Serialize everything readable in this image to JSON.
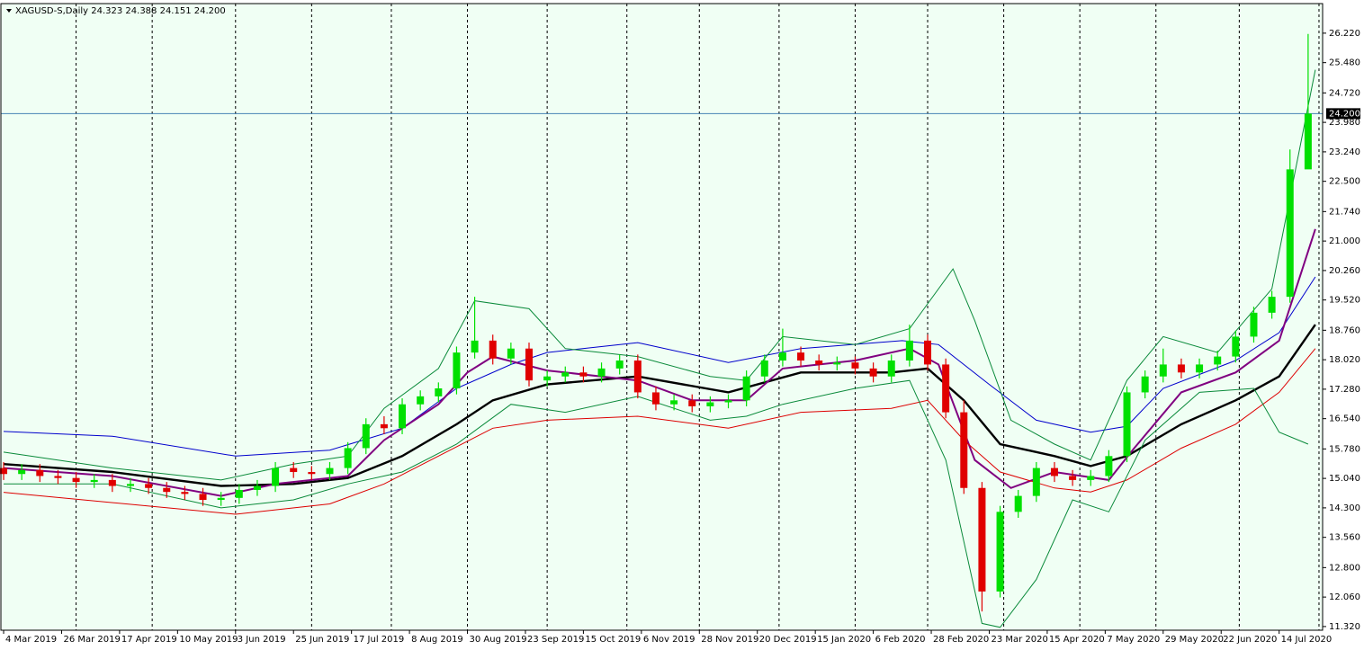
{
  "chart_data": {
    "type": "candlestick",
    "title": "XAGUSD-S,Daily  24.323 24.388 24.151 24.200",
    "background": "#f0fff4",
    "up_color": "#00e000",
    "down_color": "#e00000",
    "xlim": [
      -1,
      364
    ],
    "ylim": [
      11.25,
      26.94
    ],
    "xticks": [
      {
        "value": 0,
        "label": "4 Mar 2019"
      },
      {
        "value": 16,
        "label": "26 Mar 2019"
      },
      {
        "value": 32,
        "label": "17 Apr 2019"
      },
      {
        "value": 48,
        "label": "10 May 2019"
      },
      {
        "value": 64,
        "label": "3 Jun 2019"
      },
      {
        "value": 80,
        "label": "25 Jun 2019"
      },
      {
        "value": 96,
        "label": "17 Jul 2019"
      },
      {
        "value": 112,
        "label": "8 Aug 2019"
      },
      {
        "value": 128,
        "label": "30 Aug 2019"
      },
      {
        "value": 144,
        "label": "23 Sep 2019"
      },
      {
        "value": 160,
        "label": "15 Oct 2019"
      },
      {
        "value": 176,
        "label": "6 Nov 2019"
      },
      {
        "value": 192,
        "label": "28 Nov 2019"
      },
      {
        "value": 208,
        "label": "20 Dec 2019"
      },
      {
        "value": 224,
        "label": "15 Jan 2020"
      },
      {
        "value": 240,
        "label": "6 Feb 2020"
      },
      {
        "value": 256,
        "label": "28 Feb 2020"
      },
      {
        "value": 272,
        "label": "23 Mar 2020"
      },
      {
        "value": 288,
        "label": "15 Apr 2020"
      },
      {
        "value": 304,
        "label": "7 May 2020"
      },
      {
        "value": 320,
        "label": "29 May 2020"
      },
      {
        "value": 336,
        "label": "22 Jun 2020"
      },
      {
        "value": 352,
        "label": "14 Jul 2020"
      }
    ],
    "xgrid": [
      20,
      41,
      64,
      85,
      107,
      128,
      150,
      172,
      192,
      214,
      235,
      255,
      276,
      297,
      318,
      341,
      363
    ],
    "yticks": [
      {
        "value": 26.22,
        "label": "26.220"
      },
      {
        "value": 25.48,
        "label": "25.480"
      },
      {
        "value": 24.72,
        "label": "24.720"
      },
      {
        "value": 23.98,
        "label": "23.980"
      },
      {
        "value": 23.24,
        "label": "23.240"
      },
      {
        "value": 22.5,
        "label": "22.500"
      },
      {
        "value": 21.74,
        "label": "21.740"
      },
      {
        "value": 21,
        "label": "21.000"
      },
      {
        "value": 20.26,
        "label": "20.260"
      },
      {
        "value": 19.52,
        "label": "19.520"
      },
      {
        "value": 18.76,
        "label": "18.760"
      },
      {
        "value": 18.02,
        "label": "18.020"
      },
      {
        "value": 17.28,
        "label": "17.280"
      },
      {
        "value": 16.54,
        "label": "16.540"
      },
      {
        "value": 15.78,
        "label": "15.780"
      },
      {
        "value": 15.04,
        "label": "15.040"
      },
      {
        "value": 14.3,
        "label": "14.300"
      },
      {
        "value": 13.56,
        "label": "13.560"
      },
      {
        "value": 12.8,
        "label": "12.800"
      },
      {
        "value": 12.06,
        "label": "12.060"
      },
      {
        "value": 11.32,
        "label": "11.320"
      }
    ],
    "current_price": {
      "value": 24.2,
      "label": "24.200"
    },
    "x": [
      0,
      5,
      10,
      15,
      20,
      25,
      30,
      35,
      40,
      45,
      50,
      55,
      60,
      65,
      70,
      75,
      80,
      85,
      90,
      95,
      100,
      105,
      110,
      115,
      120,
      125,
      130,
      135,
      140,
      145,
      150,
      155,
      160,
      165,
      170,
      175,
      180,
      185,
      190,
      195,
      200,
      205,
      210,
      215,
      220,
      225,
      230,
      235,
      240,
      245,
      250,
      255,
      260,
      265,
      270,
      275,
      280,
      285,
      290,
      295,
      300,
      305,
      310,
      315,
      320,
      325,
      330,
      335,
      340,
      345,
      350,
      355,
      360
    ],
    "open": [
      15.3,
      15.15,
      15.25,
      15.1,
      15.05,
      14.95,
      15.0,
      14.85,
      14.9,
      14.8,
      14.7,
      14.65,
      14.5,
      14.55,
      14.75,
      14.85,
      15.3,
      15.2,
      15.15,
      15.3,
      15.8,
      16.4,
      16.3,
      16.9,
      17.1,
      17.3,
      18.2,
      18.5,
      18.05,
      18.3,
      17.5,
      17.6,
      17.7,
      17.6,
      17.8,
      18.0,
      17.2,
      16.9,
      17.0,
      16.85,
      16.95,
      17.0,
      17.6,
      18.0,
      18.2,
      18.0,
      17.9,
      17.95,
      17.8,
      17.6,
      18.0,
      18.5,
      17.9,
      16.7,
      14.8,
      12.2,
      14.2,
      14.6,
      15.3,
      15.1,
      15.0,
      15.1,
      15.6,
      17.2,
      17.6,
      17.9,
      17.7,
      17.9,
      18.1,
      18.6,
      19.2,
      19.6,
      22.8
    ],
    "high": [
      15.45,
      15.4,
      15.4,
      15.25,
      15.2,
      15.15,
      15.15,
      15.05,
      15.05,
      14.95,
      14.85,
      14.8,
      14.7,
      14.9,
      15.0,
      15.45,
      15.45,
      15.35,
      15.45,
      15.95,
      16.55,
      16.6,
      17.05,
      17.25,
      17.45,
      18.35,
      19.6,
      18.65,
      18.45,
      18.45,
      17.75,
      17.85,
      17.85,
      17.95,
      18.15,
      18.15,
      17.35,
      17.15,
      17.15,
      17.1,
      17.15,
      17.75,
      18.15,
      18.8,
      18.35,
      18.15,
      18.1,
      18.1,
      17.95,
      18.15,
      18.9,
      18.65,
      18.05,
      17.0,
      14.95,
      14.35,
      14.75,
      15.45,
      15.45,
      15.25,
      15.25,
      15.75,
      17.35,
      17.75,
      18.3,
      18.05,
      18.05,
      18.25,
      18.75,
      19.35,
      19.75,
      23.3,
      26.2
    ],
    "low": [
      15.0,
      15.0,
      14.95,
      14.9,
      14.8,
      14.8,
      14.7,
      14.7,
      14.65,
      14.55,
      14.5,
      14.35,
      14.35,
      14.4,
      14.6,
      14.7,
      15.05,
      15.0,
      15.0,
      15.15,
      15.65,
      16.15,
      16.15,
      16.75,
      16.95,
      17.15,
      18.05,
      17.9,
      17.9,
      17.35,
      17.35,
      17.45,
      17.45,
      17.45,
      17.65,
      17.05,
      16.75,
      16.75,
      16.7,
      16.7,
      16.8,
      16.85,
      17.45,
      17.85,
      17.85,
      17.75,
      17.75,
      17.65,
      17.45,
      17.45,
      17.85,
      17.75,
      16.55,
      14.65,
      11.7,
      12.05,
      14.05,
      14.45,
      14.95,
      14.85,
      14.85,
      14.95,
      15.45,
      17.05,
      17.45,
      17.55,
      17.55,
      17.75,
      17.95,
      18.45,
      19.05,
      19.45,
      22.9
    ],
    "close": [
      15.15,
      15.25,
      15.1,
      15.05,
      14.95,
      15.0,
      14.85,
      14.9,
      14.8,
      14.7,
      14.65,
      14.5,
      14.55,
      14.75,
      14.85,
      15.3,
      15.2,
      15.15,
      15.3,
      15.8,
      16.4,
      16.3,
      16.9,
      17.1,
      17.3,
      18.2,
      18.5,
      18.05,
      18.3,
      17.5,
      17.6,
      17.7,
      17.6,
      17.8,
      18.0,
      17.2,
      16.9,
      17.0,
      16.85,
      16.95,
      17.0,
      17.6,
      18.0,
      18.2,
      18.0,
      17.9,
      17.95,
      17.8,
      17.6,
      18.0,
      18.5,
      17.9,
      16.7,
      14.8,
      12.2,
      14.2,
      14.6,
      15.3,
      15.1,
      15.0,
      15.1,
      15.6,
      17.2,
      17.6,
      17.9,
      17.7,
      17.9,
      18.1,
      18.6,
      19.2,
      19.6,
      22.8,
      24.2
    ],
    "lines": [
      {
        "color": "#0000cc",
        "width": 1,
        "x": [
          0,
          30,
          64,
          90,
          110,
          125,
          140,
          150,
          175,
          200,
          220,
          248,
          258,
          272,
          285,
          300,
          310,
          320,
          340,
          352,
          362
        ],
        "values": [
          16.22,
          16.1,
          15.6,
          15.75,
          16.3,
          17.3,
          17.9,
          18.2,
          18.45,
          17.95,
          18.3,
          18.5,
          18.4,
          17.4,
          16.5,
          16.2,
          16.35,
          17.3,
          18.0,
          18.7,
          20.1
        ]
      },
      {
        "color": "#000000",
        "width": 2.4,
        "x": [
          0,
          30,
          60,
          80,
          95,
          110,
          125,
          135,
          150,
          175,
          200,
          220,
          245,
          255,
          265,
          275,
          290,
          300,
          310,
          325,
          340,
          352,
          362
        ],
        "values": [
          15.4,
          15.2,
          14.85,
          14.9,
          15.05,
          15.6,
          16.4,
          17.0,
          17.4,
          17.6,
          17.2,
          17.7,
          17.7,
          17.8,
          17.0,
          15.9,
          15.6,
          15.35,
          15.6,
          16.4,
          17.0,
          17.6,
          18.9
        ]
      },
      {
        "color": "#800080",
        "width": 2,
        "x": [
          0,
          30,
          60,
          75,
          95,
          105,
          120,
          128,
          135,
          150,
          175,
          190,
          205,
          215,
          235,
          250,
          258,
          268,
          278,
          290,
          305,
          312,
          325,
          340,
          352,
          362
        ],
        "values": [
          15.3,
          15.1,
          14.6,
          14.9,
          15.1,
          16.0,
          16.9,
          17.7,
          18.1,
          17.75,
          17.5,
          17.0,
          17.0,
          17.8,
          18.0,
          18.3,
          17.9,
          15.5,
          14.8,
          15.2,
          15.0,
          15.8,
          17.2,
          17.7,
          18.5,
          21.3
        ]
      },
      {
        "color": "#dd0000",
        "width": 1,
        "x": [
          0,
          64,
          90,
          105,
          120,
          135,
          150,
          175,
          200,
          220,
          245,
          255,
          265,
          275,
          290,
          300,
          310,
          325,
          340,
          352,
          362
        ],
        "values": [
          14.69,
          14.14,
          14.4,
          14.9,
          15.6,
          16.3,
          16.5,
          16.6,
          16.3,
          16.7,
          16.8,
          17.0,
          16.0,
          15.2,
          14.8,
          14.7,
          15.0,
          15.8,
          16.4,
          17.2,
          18.3
        ]
      },
      {
        "color": "#0a8a3a",
        "width": 1,
        "x": [
          0,
          30,
          60,
          80,
          95,
          105,
          120,
          130,
          145,
          155,
          175,
          195,
          205,
          215,
          235,
          250,
          262,
          268,
          278,
          290,
          300,
          310,
          320,
          335,
          350,
          362
        ],
        "values": [
          15.7,
          15.3,
          15.0,
          15.4,
          15.6,
          16.8,
          17.8,
          19.5,
          19.3,
          18.3,
          18.1,
          17.6,
          17.5,
          18.6,
          18.4,
          18.8,
          20.3,
          19.0,
          16.5,
          15.9,
          15.5,
          17.5,
          18.6,
          18.2,
          19.8,
          25.3
        ]
      },
      {
        "color": "#0a8a3a",
        "width": 1,
        "x": [
          0,
          30,
          60,
          80,
          95,
          110,
          125,
          140,
          155,
          175,
          195,
          205,
          215,
          235,
          250,
          260,
          270,
          275,
          285,
          295,
          305,
          315,
          330,
          345,
          352,
          360
        ],
        "values": [
          14.9,
          14.9,
          14.3,
          14.5,
          14.9,
          15.2,
          15.9,
          16.9,
          16.7,
          17.1,
          16.5,
          16.6,
          16.9,
          17.3,
          17.5,
          15.5,
          11.4,
          11.3,
          12.5,
          14.5,
          14.2,
          16.0,
          17.2,
          17.3,
          16.2,
          15.9
        ]
      }
    ]
  }
}
